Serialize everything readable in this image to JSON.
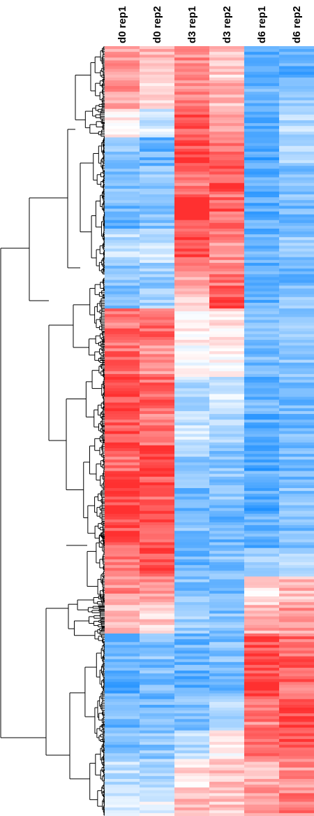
{
  "chart_data": {
    "type": "heatmap",
    "title": "",
    "xlabel": "",
    "ylabel": "",
    "columns": [
      "d0 rep1",
      "d0 rep2",
      "d3 rep1",
      "d3 rep2",
      "d6 rep1",
      "d6 rep2"
    ],
    "color_scale": {
      "low": "#1e90ff",
      "mid": "#ffffff",
      "high": "#ff3030"
    },
    "value_range": [
      -1,
      1
    ],
    "row_dendrogram": true,
    "blocks": [
      {
        "rows": 12,
        "values": [
          0.45,
          0.35,
          0.55,
          0.25,
          -0.75,
          -0.7
        ]
      },
      {
        "rows": 10,
        "values": [
          0.5,
          0.15,
          0.65,
          0.35,
          -0.7,
          -0.55
        ]
      },
      {
        "rows": 10,
        "values": [
          0.1,
          -0.2,
          0.75,
          0.45,
          -0.7,
          -0.35
        ]
      },
      {
        "rows": 10,
        "values": [
          -0.55,
          -0.65,
          0.9,
          0.6,
          -0.75,
          -0.4
        ]
      },
      {
        "rows": 10,
        "values": [
          -0.6,
          -0.5,
          0.7,
          0.85,
          -0.7,
          -0.55
        ]
      },
      {
        "rows": 12,
        "values": [
          -0.65,
          -0.55,
          0.95,
          0.75,
          -0.7,
          -0.6
        ]
      },
      {
        "rows": 12,
        "values": [
          -0.3,
          -0.25,
          0.8,
          0.55,
          -0.65,
          -0.5
        ]
      },
      {
        "rows": 10,
        "values": [
          -0.55,
          -0.45,
          0.5,
          0.7,
          -0.75,
          -0.6
        ]
      },
      {
        "rows": 6,
        "values": [
          -0.6,
          -0.4,
          0.25,
          0.9,
          -0.7,
          -0.5
        ]
      },
      {
        "rows": 12,
        "values": [
          0.7,
          0.8,
          0.05,
          0.1,
          -0.65,
          -0.55
        ]
      },
      {
        "rows": 12,
        "values": [
          0.7,
          0.55,
          -0.05,
          0.05,
          -0.6,
          -0.55
        ]
      },
      {
        "rows": 12,
        "values": [
          0.9,
          0.75,
          -0.3,
          -0.2,
          -0.65,
          -0.6
        ]
      },
      {
        "rows": 12,
        "values": [
          0.85,
          0.65,
          -0.25,
          -0.3,
          -0.7,
          -0.6
        ]
      },
      {
        "rows": 12,
        "values": [
          0.75,
          0.85,
          -0.45,
          -0.5,
          -0.75,
          -0.6
        ]
      },
      {
        "rows": 12,
        "values": [
          0.95,
          0.8,
          -0.6,
          -0.55,
          -0.75,
          -0.55
        ]
      },
      {
        "rows": 12,
        "values": [
          0.85,
          0.75,
          -0.55,
          -0.65,
          -0.7,
          -0.55
        ]
      },
      {
        "rows": 10,
        "values": [
          0.6,
          0.8,
          -0.7,
          -0.55,
          -0.45,
          -0.3
        ]
      },
      {
        "rows": 10,
        "values": [
          0.55,
          0.5,
          -0.55,
          -0.6,
          0.15,
          0.35
        ]
      },
      {
        "rows": 10,
        "values": [
          0.3,
          0.25,
          -0.45,
          -0.55,
          0.4,
          0.5
        ]
      },
      {
        "rows": 10,
        "values": [
          -0.6,
          -0.55,
          -0.65,
          -0.55,
          0.9,
          0.75
        ]
      },
      {
        "rows": 12,
        "values": [
          -0.75,
          -0.6,
          -0.7,
          -0.6,
          0.85,
          0.7
        ]
      },
      {
        "rows": 12,
        "values": [
          -0.65,
          -0.6,
          -0.55,
          -0.3,
          0.6,
          0.85
        ]
      },
      {
        "rows": 10,
        "values": [
          -0.55,
          -0.5,
          -0.35,
          0.1,
          0.7,
          0.8
        ]
      },
      {
        "rows": 10,
        "values": [
          -0.3,
          -0.35,
          0.15,
          0.3,
          0.35,
          0.55
        ]
      },
      {
        "rows": 10,
        "values": [
          -0.2,
          -0.1,
          0.35,
          0.25,
          0.45,
          0.6
        ]
      }
    ]
  }
}
